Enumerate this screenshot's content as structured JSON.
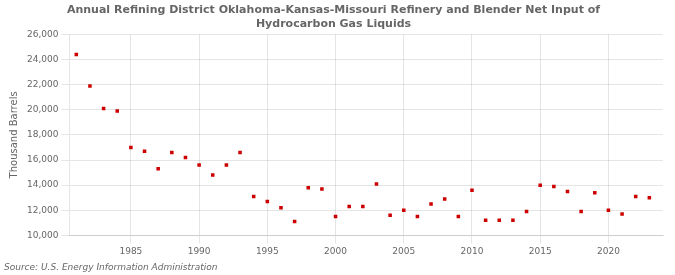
{
  "chart_data": {
    "type": "scatter",
    "title": "Annual Refining District Oklahoma-Kansas-Missouri Refinery and Blender Net Input of\nHydrocarbon Gas Liquids",
    "ylabel": "Thousand Barrels",
    "source": "Source: U.S. Energy Information Administration",
    "color": "#cc0000",
    "marker": "square",
    "grid": true,
    "x": [
      1981,
      1982,
      1983,
      1984,
      1985,
      1986,
      1987,
      1988,
      1989,
      1990,
      1991,
      1992,
      1993,
      1994,
      1995,
      1996,
      1997,
      1998,
      1999,
      2000,
      2001,
      2002,
      2003,
      2004,
      2005,
      2006,
      2007,
      2008,
      2009,
      2010,
      2011,
      2012,
      2013,
      2014,
      2015,
      2016,
      2017,
      2018,
      2019,
      2020,
      2021,
      2022,
      2023
    ],
    "values": [
      24400,
      21900,
      20100,
      19900,
      17000,
      16700,
      15300,
      16600,
      16200,
      15600,
      14800,
      15600,
      16600,
      13100,
      12700,
      12200,
      11100,
      13800,
      13700,
      11500,
      12300,
      12300,
      14100,
      11600,
      12000,
      11500,
      12500,
      12900,
      11500,
      13600,
      11200,
      11200,
      11200,
      11900,
      14000,
      13900,
      13500,
      11900,
      13400,
      12000,
      11700,
      13100,
      13000
    ],
    "xlim": [
      1980.5,
      2024
    ],
    "xticks": [
      1985,
      1990,
      1995,
      2000,
      2005,
      2010,
      2015,
      2020
    ],
    "ylim": [
      10000,
      26000
    ],
    "yticks": [
      {
        "value": 10000,
        "label": "10,000"
      },
      {
        "value": 12000,
        "label": "12,000"
      },
      {
        "value": 14000,
        "label": "14,000"
      },
      {
        "value": 16000,
        "label": "16,000"
      },
      {
        "value": 18000,
        "label": "18,000"
      },
      {
        "value": 20000,
        "label": "20,000"
      },
      {
        "value": 22000,
        "label": "22,000"
      },
      {
        "value": 24000,
        "label": "24,000"
      },
      {
        "value": 26000,
        "label": "26,000"
      }
    ]
  }
}
